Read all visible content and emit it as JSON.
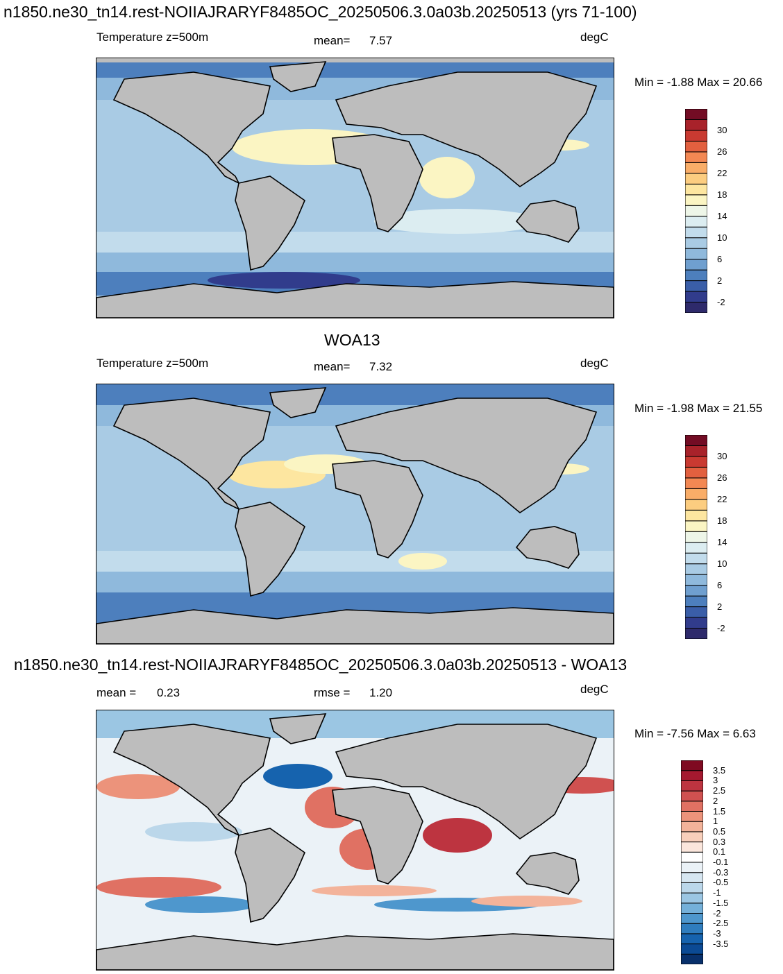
{
  "title1": "n1850.ne30_tn14.rest-NOIIAJRARYF8485OC_20250506.3.0a03b.20250513 (yrs 71-100)",
  "panel1": {
    "left": "Temperature z=500m",
    "mean_label": "mean=",
    "mean_value": "7.57",
    "units": "degC",
    "minmax": "Min =  -1.88 Max =  20.66"
  },
  "title2": "WOA13",
  "panel2": {
    "left": "Temperature z=500m",
    "mean_label": "mean=",
    "mean_value": "7.32",
    "units": "degC",
    "minmax": "Min =  -1.98 Max =  21.55"
  },
  "title3": "n1850.ne30_tn14.rest-NOIIAJRARYF8485OC_20250506.3.0a03b.20250513 - WOA13",
  "panel3": {
    "mean_label": "mean =",
    "mean_value": "0.23",
    "rmse_label": "rmse =",
    "rmse_value": "1.20",
    "units": "degC",
    "minmax": "Min =  -7.56 Max =   6.63"
  },
  "colorbar_temp": {
    "colors": [
      "#2e2a6b",
      "#313c8c",
      "#3a5ea8",
      "#4d7fbd",
      "#6f9fcf",
      "#8fb9dc",
      "#a9cbe4",
      "#c2dcec",
      "#dcedf1",
      "#eef6e8",
      "#fbf5c3",
      "#fde6a0",
      "#fccd80",
      "#f9ad68",
      "#f38853",
      "#e2603f",
      "#c93a31",
      "#a8222a",
      "#730c24"
    ],
    "labels": [
      "30",
      "26",
      "22",
      "18",
      "14",
      "10",
      "6",
      "2",
      "-2"
    ]
  },
  "colorbar_diff": {
    "colors": [
      "#08306b",
      "#0b4a94",
      "#1663ae",
      "#2f7dbe",
      "#4e97cd",
      "#74b0d9",
      "#9bc6e3",
      "#bbd7ea",
      "#d6e6f1",
      "#ebf2f7",
      "#ffffff",
      "#fbe6dc",
      "#f8cfbb",
      "#f3b39a",
      "#ec937b",
      "#e07163",
      "#d05150",
      "#bd3440",
      "#a4192f",
      "#7f0a21"
    ],
    "labels": [
      "3.5",
      "3",
      "2.5",
      "2",
      "1.5",
      "1",
      "0.5",
      "0.3",
      "0.1",
      "-0.1",
      "-0.3",
      "-0.5",
      "-1",
      "-1.5",
      "-2",
      "-2.5",
      "-3",
      "-3.5"
    ]
  }
}
